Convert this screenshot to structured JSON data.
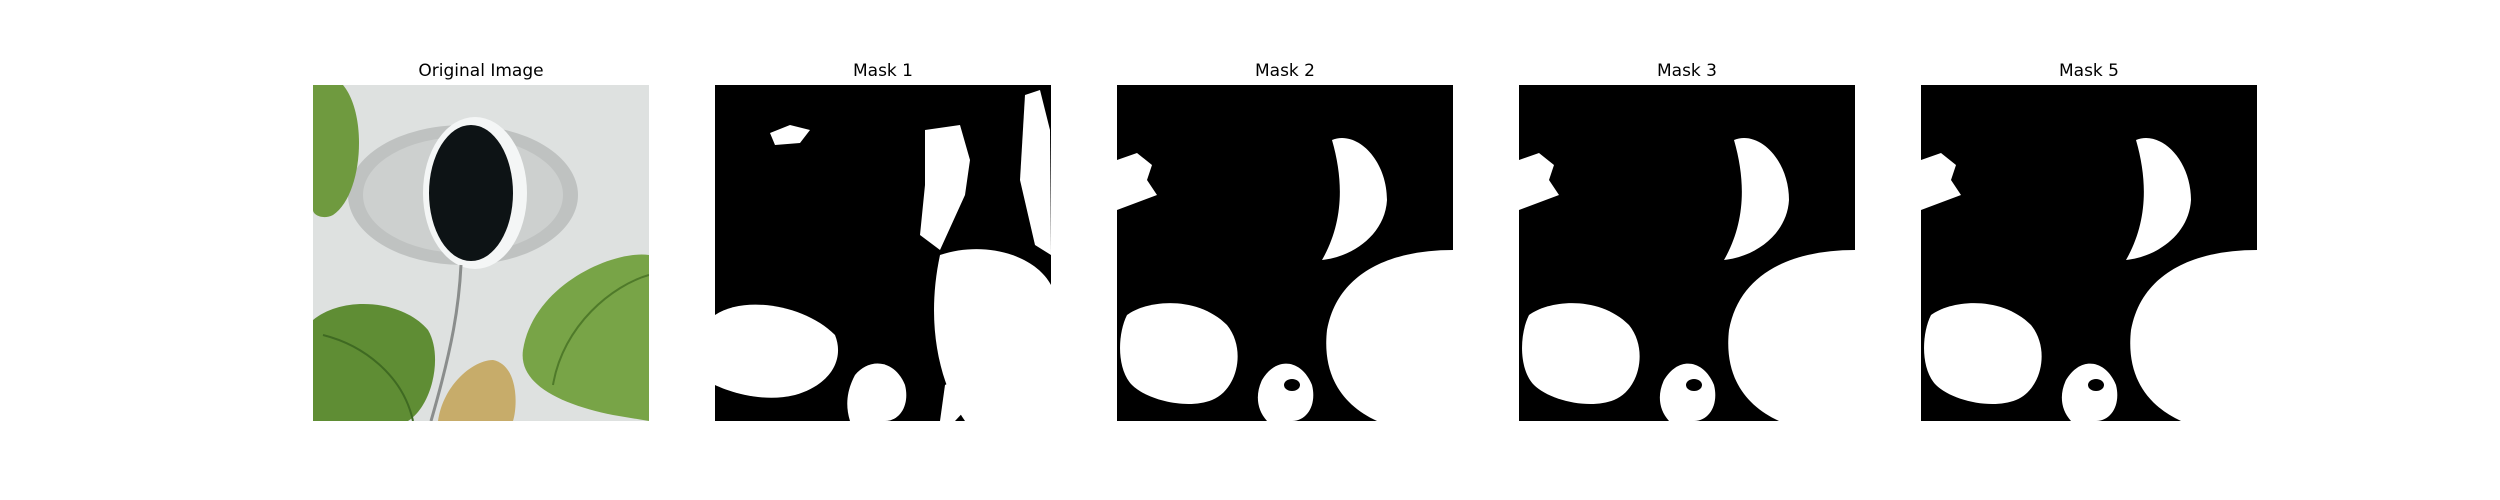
{
  "figure": {
    "panels": [
      {
        "id": "original",
        "title": "Original Image",
        "kind": "photo"
      },
      {
        "id": "mask1",
        "title": "Mask 1",
        "kind": "mask"
      },
      {
        "id": "mask2",
        "title": "Mask 2",
        "kind": "mask"
      },
      {
        "id": "mask3",
        "title": "Mask 3",
        "kind": "mask"
      },
      {
        "id": "mask5",
        "title": "Mask 5",
        "kind": "mask"
      }
    ],
    "colors": {
      "mask_background": "#000000",
      "mask_foreground": "#ffffff",
      "wall": "#dcdfde",
      "leaf": "#6f9a3f",
      "leaf_dark": "#4f7a2a",
      "dry_leaf": "#c7ac6a",
      "pot_inner": "#0e1416",
      "pot_ring": "#f6f8f8"
    }
  }
}
